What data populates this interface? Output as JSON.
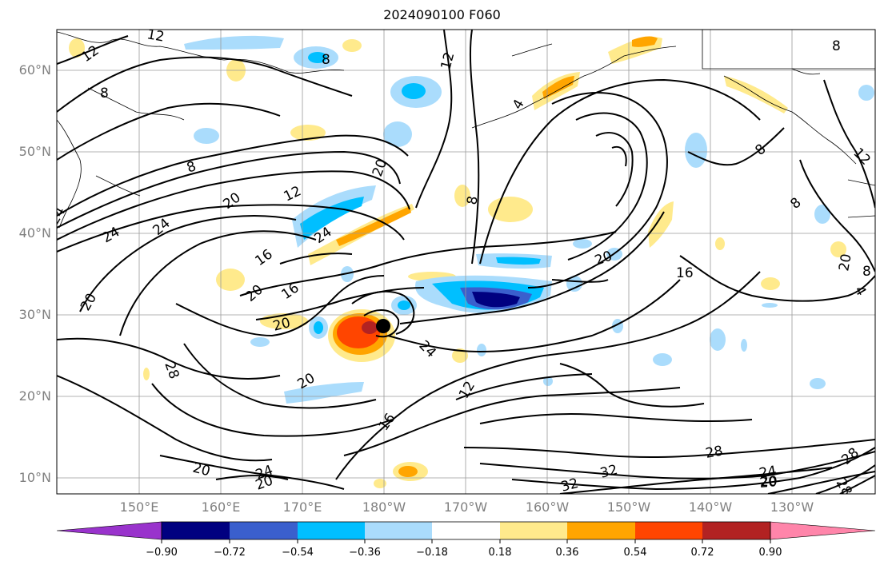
{
  "title": "2024090100 F060",
  "lat_labels": [
    "60°N",
    "50°N",
    "40°N",
    "30°N",
    "20°N",
    "10°N"
  ],
  "lon_labels": [
    "150°E",
    "160°E",
    "170°E",
    "180°W",
    "170°W",
    "160°W",
    "150°W",
    "140°W",
    "130°W"
  ],
  "contour_labels": [
    "12",
    "8",
    "12",
    "8",
    "12",
    "4",
    "8",
    "8",
    "8",
    "12",
    "8",
    "8",
    "20",
    "20",
    "12",
    "24",
    "20",
    "24",
    "24",
    "24",
    "16",
    "20",
    "16",
    "20",
    "20",
    "20",
    "24",
    "28",
    "16",
    "12",
    "20",
    "16",
    "20",
    "20",
    "24",
    "20",
    "32",
    "32",
    "28",
    "24",
    "20",
    "28",
    "28",
    "4",
    "8"
  ],
  "colorbar": {
    "ticks": [
      "−0.90",
      "−0.72",
      "−0.54",
      "−0.36",
      "−0.18",
      "0.18",
      "0.36",
      "0.54",
      "0.72",
      "0.90"
    ],
    "colors": [
      "#9933cc",
      "#000080",
      "#3a5fcd",
      "#00bfff",
      "#aadcfc",
      "#ffffff",
      "#ffea8c",
      "#ffa500",
      "#ff4500",
      "#b22222",
      "#ff85aa"
    ]
  }
}
